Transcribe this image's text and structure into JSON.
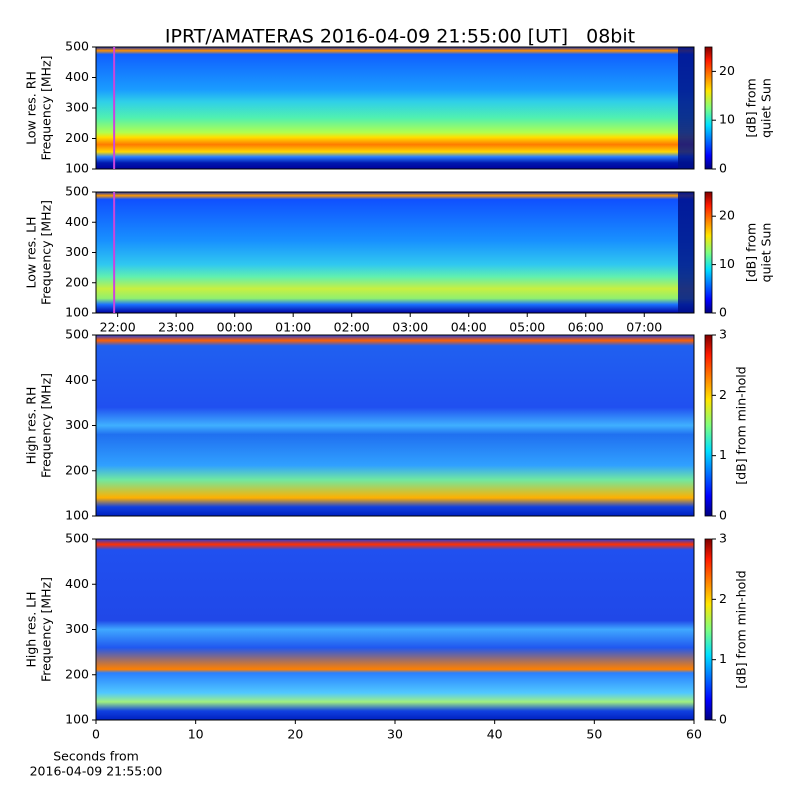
{
  "chart_data": [
    {
      "type": "heatmap",
      "title": "IPRT/AMATERAS 2016-04-09 21:55:00 [UT]   08bit",
      "ylabel": [
        "Low res. RH",
        "Frequency [MHz]"
      ],
      "ylim": [
        100,
        500
      ],
      "yticks": [
        100,
        200,
        300,
        400,
        500
      ],
      "xlim": [
        21.63,
        31.85
      ],
      "vline_x": 21.94,
      "vline_color": "#cc44dd",
      "colorbar": {
        "label": [
          "[dB] from",
          "quiet Sun"
        ],
        "lim": [
          0,
          25
        ],
        "ticks": [
          0,
          10,
          20
        ]
      }
    },
    {
      "type": "heatmap",
      "ylabel": [
        "Low res. LH",
        "Frequency [MHz]"
      ],
      "ylim": [
        100,
        500
      ],
      "yticks": [
        100,
        200,
        300,
        400,
        500
      ],
      "xlim": [
        21.63,
        31.85
      ],
      "vline_x": 21.94,
      "vline_color": "#cc44dd",
      "xticks": [
        {
          "value": 22,
          "label": "22:00"
        },
        {
          "value": 23,
          "label": "23:00"
        },
        {
          "value": 24,
          "label": "00:00"
        },
        {
          "value": 25,
          "label": "01:00"
        },
        {
          "value": 26,
          "label": "02:00"
        },
        {
          "value": 27,
          "label": "03:00"
        },
        {
          "value": 28,
          "label": "04:00"
        },
        {
          "value": 29,
          "label": "05:00"
        },
        {
          "value": 30,
          "label": "06:00"
        },
        {
          "value": 31,
          "label": "07:00"
        }
      ],
      "colorbar": {
        "label": [
          "[dB] from",
          "quiet Sun"
        ],
        "lim": [
          0,
          25
        ],
        "ticks": [
          0,
          10,
          20
        ]
      }
    },
    {
      "type": "heatmap",
      "ylabel": [
        "High res. RH",
        "Frequency [MHz]"
      ],
      "ylim": [
        100,
        500
      ],
      "yticks": [
        100,
        200,
        300,
        400,
        500
      ],
      "xlim": [
        0,
        60
      ],
      "colorbar": {
        "label": [
          "[dB] from min-hold"
        ],
        "lim": [
          0,
          3
        ],
        "ticks": [
          0,
          1,
          2,
          3
        ]
      }
    },
    {
      "type": "heatmap",
      "ylabel": [
        "High res. LH",
        "Frequency [MHz]"
      ],
      "ylim": [
        100,
        500
      ],
      "yticks": [
        100,
        200,
        300,
        400,
        500
      ],
      "xlim": [
        0,
        60
      ],
      "xticks": [
        0,
        10,
        20,
        30,
        40,
        50,
        60
      ],
      "xlabel": [
        "Seconds from",
        "2016-04-09 21:55:00"
      ],
      "colorbar": {
        "label": [
          "[dB] from min-hold"
        ],
        "lim": [
          0,
          3
        ],
        "ticks": [
          0,
          1,
          2,
          3
        ]
      }
    }
  ]
}
